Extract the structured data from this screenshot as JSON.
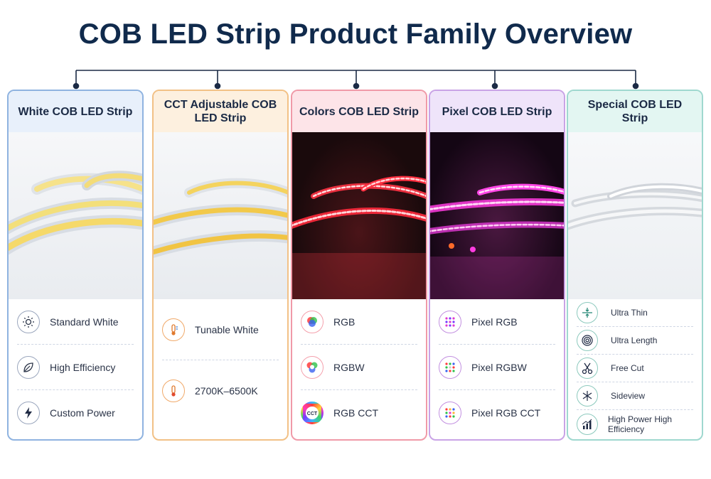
{
  "title": "COB LED Strip Product Family Overview",
  "cards": [
    {
      "name": "White COB LED Strip",
      "accent": "#8fb3e0",
      "header_bg": "#e8f0fb",
      "features": [
        {
          "label": "Standard White",
          "icon": "sun-icon"
        },
        {
          "label": "High Efficiency",
          "icon": "leaf-icon"
        },
        {
          "label": "Custom Power",
          "icon": "lightning-icon"
        }
      ]
    },
    {
      "name": "CCT Adjustable COB LED Strip",
      "accent": "#f2c186",
      "header_bg": "#fdf0df",
      "features": [
        {
          "label": "Tunable White",
          "icon": "thermometer-icon"
        },
        {
          "label": "2700K–6500K",
          "icon": "thermometer-icon"
        }
      ]
    },
    {
      "name": "Colors COB LED Strip",
      "accent": "#f09aa8",
      "header_bg": "#fde4e8",
      "features": [
        {
          "label": "RGB",
          "icon": "rgb-circles-icon"
        },
        {
          "label": "RGBW",
          "icon": "rgbw-circles-icon"
        },
        {
          "label": "RGB CCT",
          "icon": "cct-ring-icon"
        }
      ]
    },
    {
      "name": "Pixel COB LED Strip",
      "accent": "#c9a3e6",
      "header_bg": "#efe4fa",
      "features": [
        {
          "label": "Pixel RGB",
          "icon": "pixel-grid-icon"
        },
        {
          "label": "Pixel RGBW",
          "icon": "pixel-grid-icon"
        },
        {
          "label": "Pixel RGB CCT",
          "icon": "pixel-grid-icon"
        }
      ]
    },
    {
      "name": "Special COB LED Strip",
      "accent": "#9fd8cf",
      "header_bg": "#e3f6f2",
      "features": [
        {
          "label": "Ultra Thin",
          "icon": "compress-arrows-icon"
        },
        {
          "label": "Ultra Length",
          "icon": "reel-icon"
        },
        {
          "label": "Free Cut",
          "icon": "scissors-icon"
        },
        {
          "label": "Sideview",
          "icon": "side-emit-icon"
        },
        {
          "label": "High Power High Efficiency",
          "icon": "bar-chart-icon"
        }
      ]
    }
  ]
}
